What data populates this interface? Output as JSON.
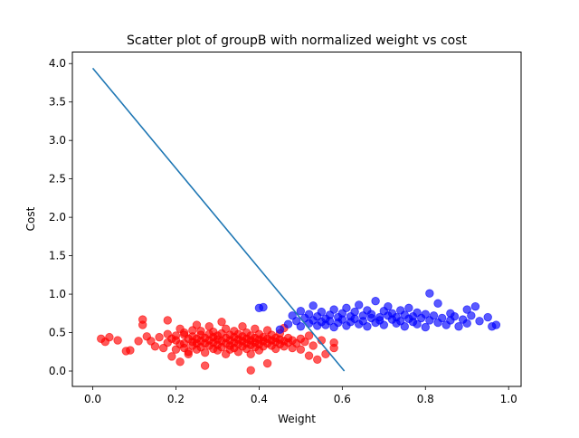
{
  "chart_data": {
    "type": "scatter",
    "title": "Scatter plot of groupB with normalized weight vs cost",
    "xlabel": "Weight",
    "ylabel": "Cost",
    "xlim": [
      -0.049,
      1.03
    ],
    "ylim": [
      -0.2,
      4.15
    ],
    "x_ticks": [
      "0.0",
      "0.2",
      "0.4",
      "0.6",
      "0.8",
      "1.0"
    ],
    "y_ticks": [
      "0.0",
      "0.5",
      "1.0",
      "1.5",
      "2.0",
      "2.5",
      "3.0",
      "3.5",
      "4.0"
    ],
    "grid": false,
    "legend": "none",
    "colors": {
      "red_points": "#ff0000",
      "blue_points": "#0000ff",
      "boundary_line": "#1f77b4",
      "point_alpha": 0.65
    },
    "series": [
      {
        "color": "#ff0000",
        "points": [
          [
            0.02,
            0.42
          ],
          [
            0.03,
            0.38
          ],
          [
            0.04,
            0.44
          ],
          [
            0.06,
            0.4
          ],
          [
            0.08,
            0.26
          ],
          [
            0.09,
            0.27
          ],
          [
            0.11,
            0.39
          ],
          [
            0.12,
            0.67
          ],
          [
            0.12,
            0.6
          ],
          [
            0.13,
            0.45
          ],
          [
            0.14,
            0.39
          ],
          [
            0.15,
            0.32
          ],
          [
            0.16,
            0.44
          ],
          [
            0.17,
            0.3
          ],
          [
            0.18,
            0.48
          ],
          [
            0.18,
            0.37
          ],
          [
            0.18,
            0.66
          ],
          [
            0.19,
            0.19
          ],
          [
            0.19,
            0.42
          ],
          [
            0.2,
            0.46
          ],
          [
            0.2,
            0.28
          ],
          [
            0.2,
            0.4
          ],
          [
            0.21,
            0.12
          ],
          [
            0.21,
            0.35
          ],
          [
            0.21,
            0.55
          ],
          [
            0.22,
            0.47
          ],
          [
            0.22,
            0.36
          ],
          [
            0.22,
            0.3
          ],
          [
            0.22,
            0.5
          ],
          [
            0.23,
            0.42
          ],
          [
            0.23,
            0.25
          ],
          [
            0.23,
            0.22
          ],
          [
            0.24,
            0.38
          ],
          [
            0.24,
            0.53
          ],
          [
            0.24,
            0.45
          ],
          [
            0.24,
            0.33
          ],
          [
            0.25,
            0.42
          ],
          [
            0.25,
            0.28
          ],
          [
            0.25,
            0.6
          ],
          [
            0.25,
            0.36
          ],
          [
            0.26,
            0.47
          ],
          [
            0.26,
            0.39
          ],
          [
            0.26,
            0.31
          ],
          [
            0.26,
            0.52
          ],
          [
            0.27,
            0.24
          ],
          [
            0.27,
            0.43
          ],
          [
            0.27,
            0.36
          ],
          [
            0.27,
            0.07
          ],
          [
            0.28,
            0.48
          ],
          [
            0.28,
            0.4
          ],
          [
            0.28,
            0.33
          ],
          [
            0.28,
            0.58
          ],
          [
            0.29,
            0.44
          ],
          [
            0.29,
            0.29
          ],
          [
            0.29,
            0.37
          ],
          [
            0.29,
            0.51
          ],
          [
            0.3,
            0.41
          ],
          [
            0.3,
            0.34
          ],
          [
            0.3,
            0.27
          ],
          [
            0.3,
            0.46
          ],
          [
            0.31,
            0.39
          ],
          [
            0.31,
            0.49
          ],
          [
            0.31,
            0.31
          ],
          [
            0.31,
            0.64
          ],
          [
            0.32,
            0.43
          ],
          [
            0.32,
            0.36
          ],
          [
            0.32,
            0.22
          ],
          [
            0.32,
            0.55
          ],
          [
            0.33,
            0.4
          ],
          [
            0.33,
            0.33
          ],
          [
            0.33,
            0.47
          ],
          [
            0.33,
            0.28
          ],
          [
            0.34,
            0.44
          ],
          [
            0.34,
            0.37
          ],
          [
            0.34,
            0.3
          ],
          [
            0.34,
            0.52
          ],
          [
            0.35,
            0.41
          ],
          [
            0.35,
            0.35
          ],
          [
            0.35,
            0.48
          ],
          [
            0.35,
            0.25
          ],
          [
            0.36,
            0.39
          ],
          [
            0.36,
            0.45
          ],
          [
            0.36,
            0.32
          ],
          [
            0.36,
            0.58
          ],
          [
            0.37,
            0.42
          ],
          [
            0.37,
            0.36
          ],
          [
            0.37,
            0.29
          ],
          [
            0.37,
            0.5
          ],
          [
            0.38,
            0.4
          ],
          [
            0.38,
            0.34
          ],
          [
            0.38,
            0.46
          ],
          [
            0.38,
            0.01
          ],
          [
            0.38,
            0.22
          ],
          [
            0.39,
            0.43
          ],
          [
            0.39,
            0.37
          ],
          [
            0.39,
            0.31
          ],
          [
            0.39,
            0.55
          ],
          [
            0.4,
            0.41
          ],
          [
            0.4,
            0.35
          ],
          [
            0.4,
            0.48
          ],
          [
            0.4,
            0.27
          ],
          [
            0.41,
            0.39
          ],
          [
            0.41,
            0.44
          ],
          [
            0.41,
            0.32
          ],
          [
            0.42,
            0.42
          ],
          [
            0.42,
            0.36
          ],
          [
            0.42,
            0.1
          ],
          [
            0.42,
            0.53
          ],
          [
            0.43,
            0.4
          ],
          [
            0.43,
            0.33
          ],
          [
            0.43,
            0.47
          ],
          [
            0.44,
            0.38
          ],
          [
            0.44,
            0.43
          ],
          [
            0.44,
            0.29
          ],
          [
            0.45,
            0.41
          ],
          [
            0.45,
            0.35
          ],
          [
            0.45,
            0.49
          ],
          [
            0.46,
            0.39
          ],
          [
            0.46,
            0.32
          ],
          [
            0.46,
            0.56
          ],
          [
            0.47,
            0.37
          ],
          [
            0.47,
            0.43
          ],
          [
            0.48,
            0.4
          ],
          [
            0.48,
            0.3
          ],
          [
            0.49,
            0.36
          ],
          [
            0.5,
            0.42
          ],
          [
            0.5,
            0.28
          ],
          [
            0.51,
            0.38
          ],
          [
            0.52,
            0.2
          ],
          [
            0.52,
            0.46
          ],
          [
            0.53,
            0.33
          ],
          [
            0.54,
            0.15
          ],
          [
            0.55,
            0.4
          ],
          [
            0.56,
            0.22
          ],
          [
            0.58,
            0.37
          ],
          [
            0.58,
            0.3
          ]
        ]
      },
      {
        "color": "#0000ff",
        "points": [
          [
            0.4,
            0.82
          ],
          [
            0.41,
            0.83
          ],
          [
            0.45,
            0.54
          ],
          [
            0.47,
            0.61
          ],
          [
            0.48,
            0.72
          ],
          [
            0.49,
            0.65
          ],
          [
            0.5,
            0.58
          ],
          [
            0.5,
            0.78
          ],
          [
            0.51,
            0.69
          ],
          [
            0.52,
            0.62
          ],
          [
            0.52,
            0.74
          ],
          [
            0.53,
            0.66
          ],
          [
            0.53,
            0.85
          ],
          [
            0.54,
            0.59
          ],
          [
            0.54,
            0.71
          ],
          [
            0.55,
            0.64
          ],
          [
            0.55,
            0.77
          ],
          [
            0.56,
            0.68
          ],
          [
            0.56,
            0.6
          ],
          [
            0.57,
            0.73
          ],
          [
            0.57,
            0.65
          ],
          [
            0.58,
            0.8
          ],
          [
            0.58,
            0.57
          ],
          [
            0.59,
            0.7
          ],
          [
            0.59,
            0.63
          ],
          [
            0.6,
            0.75
          ],
          [
            0.6,
            0.67
          ],
          [
            0.61,
            0.59
          ],
          [
            0.61,
            0.82
          ],
          [
            0.62,
            0.71
          ],
          [
            0.62,
            0.64
          ],
          [
            0.63,
            0.77
          ],
          [
            0.63,
            0.68
          ],
          [
            0.64,
            0.61
          ],
          [
            0.64,
            0.86
          ],
          [
            0.65,
            0.72
          ],
          [
            0.65,
            0.65
          ],
          [
            0.66,
            0.79
          ],
          [
            0.66,
            0.58
          ],
          [
            0.67,
            0.69
          ],
          [
            0.67,
            0.74
          ],
          [
            0.68,
            0.63
          ],
          [
            0.68,
            0.91
          ],
          [
            0.69,
            0.7
          ],
          [
            0.69,
            0.66
          ],
          [
            0.7,
            0.78
          ],
          [
            0.7,
            0.6
          ],
          [
            0.71,
            0.72
          ],
          [
            0.71,
            0.84
          ],
          [
            0.72,
            0.67
          ],
          [
            0.72,
            0.75
          ],
          [
            0.73,
            0.62
          ],
          [
            0.73,
            0.7
          ],
          [
            0.74,
            0.79
          ],
          [
            0.74,
            0.65
          ],
          [
            0.75,
            0.73
          ],
          [
            0.75,
            0.58
          ],
          [
            0.76,
            0.68
          ],
          [
            0.76,
            0.82
          ],
          [
            0.77,
            0.71
          ],
          [
            0.77,
            0.64
          ],
          [
            0.78,
            0.76
          ],
          [
            0.78,
            0.61
          ],
          [
            0.79,
            0.69
          ],
          [
            0.8,
            0.74
          ],
          [
            0.8,
            0.57
          ],
          [
            0.81,
            0.66
          ],
          [
            0.81,
            1.01
          ],
          [
            0.82,
            0.72
          ],
          [
            0.83,
            0.63
          ],
          [
            0.83,
            0.88
          ],
          [
            0.84,
            0.69
          ],
          [
            0.85,
            0.6
          ],
          [
            0.86,
            0.75
          ],
          [
            0.86,
            0.66
          ],
          [
            0.87,
            0.71
          ],
          [
            0.88,
            0.58
          ],
          [
            0.89,
            0.67
          ],
          [
            0.9,
            0.8
          ],
          [
            0.9,
            0.62
          ],
          [
            0.91,
            0.72
          ],
          [
            0.92,
            0.84
          ],
          [
            0.93,
            0.65
          ],
          [
            0.95,
            0.7
          ],
          [
            0.96,
            0.58
          ],
          [
            0.97,
            0.6
          ]
        ]
      }
    ],
    "line": {
      "color": "#1f77b4",
      "x": [
        0.0,
        0.605
      ],
      "y": [
        3.94,
        0.0
      ]
    }
  }
}
